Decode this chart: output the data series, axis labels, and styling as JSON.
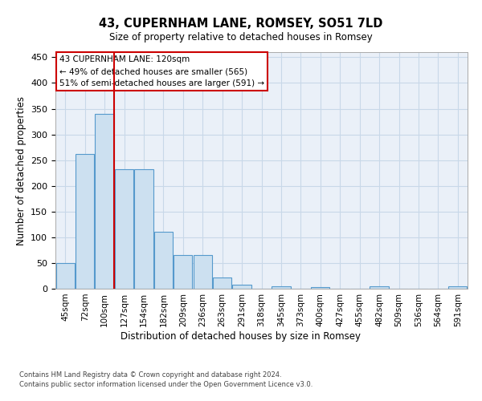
{
  "title_line1": "43, CUPERNHAM LANE, ROMSEY, SO51 7LD",
  "title_line2": "Size of property relative to detached houses in Romsey",
  "xlabel": "Distribution of detached houses by size in Romsey",
  "ylabel": "Number of detached properties",
  "categories": [
    "45sqm",
    "72sqm",
    "100sqm",
    "127sqm",
    "154sqm",
    "182sqm",
    "209sqm",
    "236sqm",
    "263sqm",
    "291sqm",
    "318sqm",
    "345sqm",
    "373sqm",
    "400sqm",
    "427sqm",
    "455sqm",
    "482sqm",
    "509sqm",
    "536sqm",
    "564sqm",
    "591sqm"
  ],
  "values": [
    50,
    262,
    340,
    232,
    232,
    110,
    65,
    65,
    22,
    8,
    0,
    4,
    0,
    3,
    0,
    0,
    4,
    0,
    0,
    0,
    4
  ],
  "bar_color": "#cce0f0",
  "bar_edge_color": "#5599cc",
  "grid_color": "#c8d8e8",
  "background_color": "#eaf0f8",
  "vline_position": 2.5,
  "vline_color": "#cc0000",
  "annotation_text": "43 CUPERNHAM LANE: 120sqm\n← 49% of detached houses are smaller (565)\n51% of semi-detached houses are larger (591) →",
  "annotation_box_facecolor": "#ffffff",
  "annotation_box_edgecolor": "#cc0000",
  "ylim": [
    0,
    460
  ],
  "yticks": [
    0,
    50,
    100,
    150,
    200,
    250,
    300,
    350,
    400,
    450
  ],
  "footer_line1": "Contains HM Land Registry data © Crown copyright and database right 2024.",
  "footer_line2": "Contains public sector information licensed under the Open Government Licence v3.0."
}
